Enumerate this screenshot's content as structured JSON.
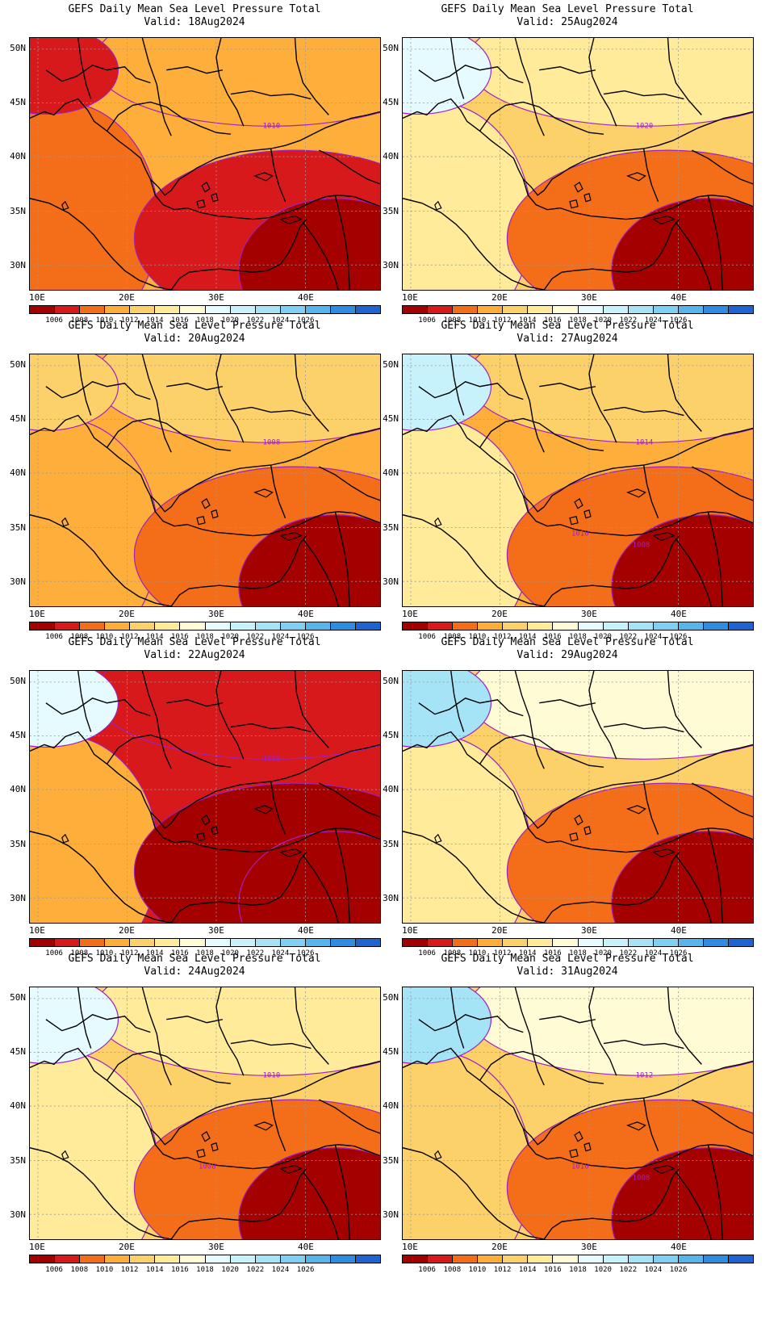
{
  "title": "GEFS Daily Mean Sea Level Pressure Total",
  "valid_prefix": "Valid:",
  "lat_labels": [
    "50N",
    "45N",
    "40N",
    "35N",
    "30N"
  ],
  "lon_labels": [
    "10E",
    "20E",
    "30E",
    "40E"
  ],
  "colorbar": {
    "colors": [
      "#a50000",
      "#d7191c",
      "#f46d19",
      "#fdae3b",
      "#fdd16a",
      "#ffeb9a",
      "#fffbd4",
      "#e6fbff",
      "#c7f1fb",
      "#a5e3f7",
      "#7fd0f3",
      "#57b5ec",
      "#2e8de3",
      "#1f63d3"
    ],
    "labels": [
      "1006",
      "1008",
      "1010",
      "1012",
      "1014",
      "1016",
      "1018",
      "1020",
      "1022",
      "1024",
      "1026"
    ]
  },
  "contour_color": "#a020c0",
  "panels": [
    {
      "date": "18Aug2024",
      "levels": {
        "north": "#fdae3b",
        "center": "#fdae3b",
        "east": "#d7191c",
        "southeast": "#a50000",
        "west": "#f46d19",
        "nw": "#d7191c"
      },
      "labels": [
        "1010"
      ]
    },
    {
      "date": "25Aug2024",
      "levels": {
        "north": "#ffeb9a",
        "center": "#fdd16a",
        "east": "#f46d19",
        "southeast": "#a50000",
        "west": "#ffeb9a",
        "nw": "#e6fbff"
      },
      "labels": [
        "1020"
      ]
    },
    {
      "date": "20Aug2024",
      "levels": {
        "north": "#fdd16a",
        "center": "#fdae3b",
        "east": "#f46d19",
        "southeast": "#a50000",
        "west": "#fdae3b",
        "nw": "#fdd16a"
      },
      "labels": [
        "1008"
      ]
    },
    {
      "date": "27Aug2024",
      "levels": {
        "north": "#fdd16a",
        "center": "#fdae3b",
        "east": "#f46d19",
        "southeast": "#a50000",
        "west": "#ffeb9a",
        "nw": "#c7f1fb"
      },
      "labels": [
        "1014",
        "1010",
        "1008"
      ]
    },
    {
      "date": "22Aug2024",
      "levels": {
        "north": "#d7191c",
        "center": "#d7191c",
        "east": "#a50000",
        "southeast": "#a50000",
        "west": "#fdae3b",
        "nw": "#e6fbff"
      },
      "labels": [
        "1008"
      ]
    },
    {
      "date": "29Aug2024",
      "levels": {
        "north": "#fffbd4",
        "center": "#fdd16a",
        "east": "#f46d19",
        "southeast": "#a50000",
        "west": "#ffeb9a",
        "nw": "#a5e3f7"
      },
      "labels": []
    },
    {
      "date": "24Aug2024",
      "levels": {
        "north": "#ffeb9a",
        "center": "#fdd16a",
        "east": "#f46d19",
        "southeast": "#a50000",
        "west": "#ffeb9a",
        "nw": "#e6fbff"
      },
      "labels": [
        "1010",
        "1008"
      ]
    },
    {
      "date": "31Aug2024",
      "levels": {
        "north": "#fffbd4",
        "center": "#fdd16a",
        "east": "#f46d19",
        "southeast": "#a50000",
        "west": "#fdd16a",
        "nw": "#a5e3f7"
      },
      "labels": [
        "1012",
        "1010",
        "1008"
      ]
    }
  ]
}
